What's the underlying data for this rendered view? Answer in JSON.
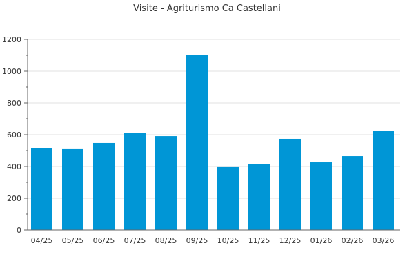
{
  "chart_data": {
    "type": "bar",
    "title": "Visite - Agriturismo Ca Castellani",
    "xlabel": "",
    "ylabel": "",
    "categories": [
      "04/25",
      "05/25",
      "06/25",
      "07/25",
      "08/25",
      "09/25",
      "10/25",
      "11/25",
      "12/25",
      "01/26",
      "02/26",
      "03/26"
    ],
    "values": [
      517,
      509,
      548,
      613,
      591,
      1100,
      396,
      417,
      574,
      426,
      465,
      626
    ],
    "ylim": [
      0,
      1200
    ],
    "yticks": [
      0,
      200,
      400,
      600,
      800,
      1000,
      1200
    ],
    "grid": true,
    "legend": "none",
    "colors": {
      "bar": "#0096d6",
      "grid": "#e0e0e0",
      "axis": "#666666"
    }
  }
}
